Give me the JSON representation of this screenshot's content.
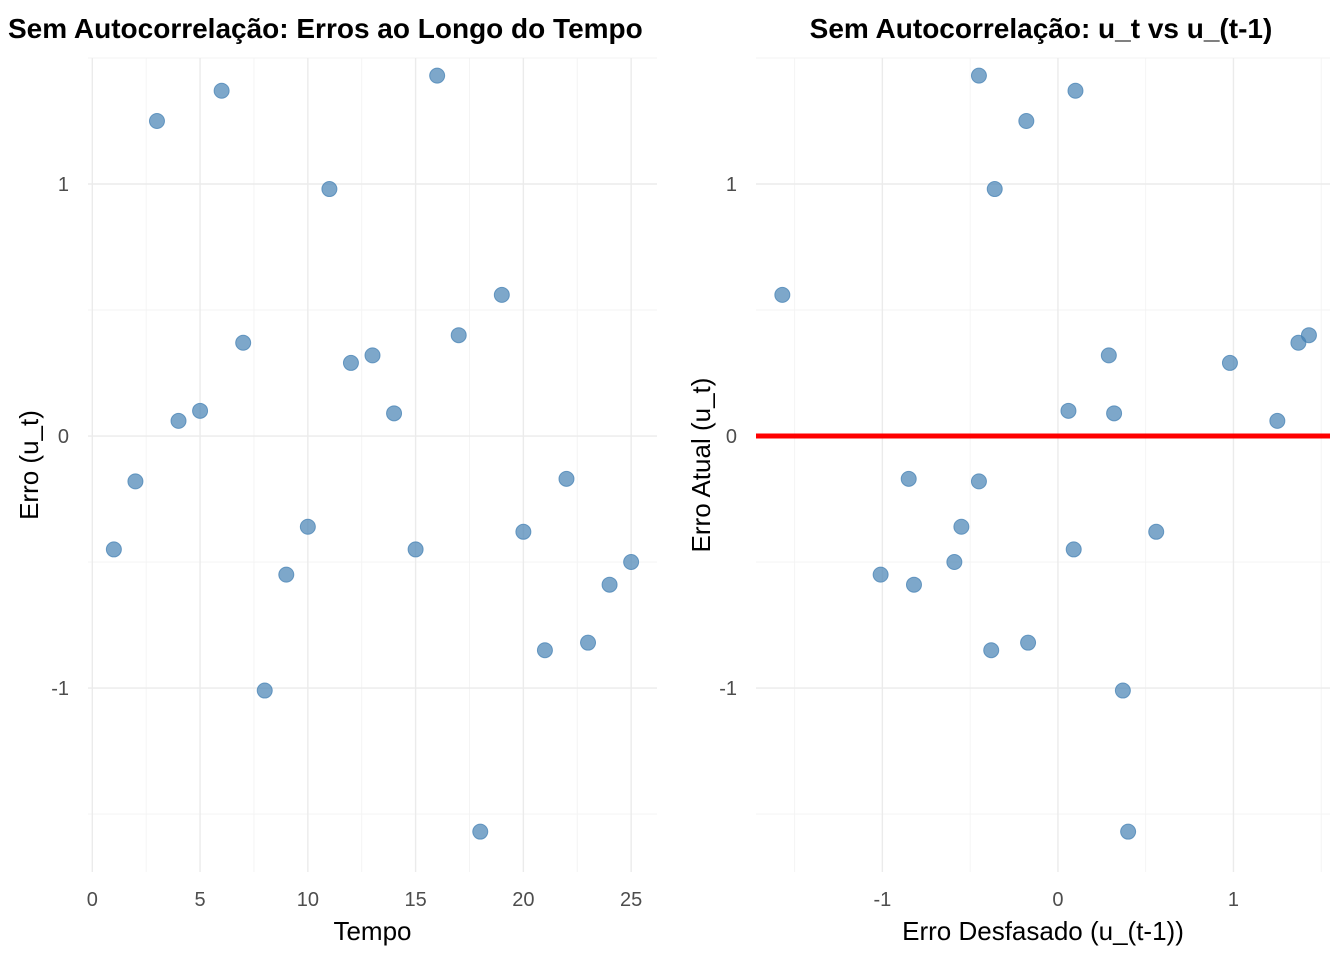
{
  "chart_data": [
    {
      "type": "scatter",
      "title": "Sem Autocorrelação: Erros ao Longo do Tempo",
      "xlabel": "Tempo",
      "ylabel": "Erro (u_t)",
      "xlim": [
        -0.2,
        26.2
      ],
      "ylim": [
        -1.73,
        1.5
      ],
      "xticks": [
        0,
        5,
        10,
        15,
        20,
        25
      ],
      "yticks": [
        -1,
        0,
        1
      ],
      "grid": true,
      "color": "#4682b4",
      "x": [
        1,
        2,
        3,
        4,
        5,
        6,
        7,
        8,
        9,
        10,
        11,
        12,
        13,
        14,
        15,
        16,
        17,
        18,
        19,
        20,
        21,
        22,
        23,
        24,
        25
      ],
      "y": [
        -0.45,
        -0.18,
        1.25,
        0.06,
        0.1,
        1.37,
        0.37,
        -1.01,
        -0.55,
        -0.36,
        0.98,
        0.29,
        0.32,
        0.09,
        -0.45,
        1.43,
        0.4,
        -1.57,
        0.56,
        -0.38,
        -0.85,
        -0.17,
        -0.82,
        -0.59,
        -0.5
      ]
    },
    {
      "type": "scatter",
      "title": "Sem Autocorrelação: u_t vs u_(t-1)",
      "xlabel": "Erro Desfasado (u_(t-1))",
      "ylabel": "Erro Atual (u_t)",
      "xlim": [
        -1.72,
        1.55
      ],
      "ylim": [
        -1.73,
        1.5
      ],
      "xticks": [
        -1,
        0,
        1
      ],
      "yticks": [
        -1,
        0,
        1
      ],
      "grid": true,
      "color": "#4682b4",
      "hline": {
        "y": 0,
        "color": "#ff0000"
      },
      "x": [
        -0.45,
        -0.18,
        1.25,
        0.06,
        0.1,
        1.37,
        0.37,
        -1.01,
        -0.55,
        -0.36,
        0.98,
        0.29,
        0.32,
        0.09,
        -0.45,
        1.43,
        0.4,
        -1.57,
        0.56,
        -0.38,
        -0.85,
        -0.17,
        -0.82,
        -0.59
      ],
      "y": [
        -0.18,
        1.25,
        0.06,
        0.1,
        1.37,
        0.37,
        -1.01,
        -0.55,
        -0.36,
        0.98,
        0.29,
        0.32,
        0.09,
        -0.45,
        1.43,
        0.4,
        -1.57,
        0.56,
        -0.38,
        -0.85,
        -0.17,
        -0.82,
        -0.59,
        -0.5
      ]
    }
  ]
}
